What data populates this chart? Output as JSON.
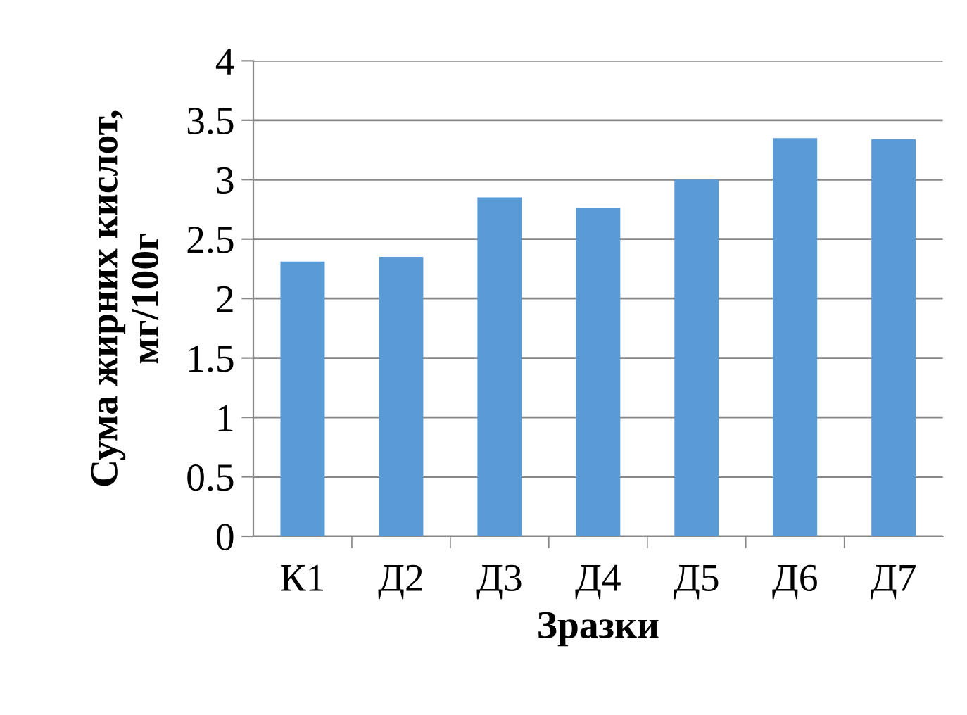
{
  "chart_data": {
    "type": "bar",
    "xlabel": "Зразки",
    "ylabel": "Сума жирних кислот,\nмг/100г",
    "categories": [
      "К1",
      "Д2",
      "Д3",
      "Д4",
      "Д5",
      "Д6",
      "Д7"
    ],
    "values": [
      2.31,
      2.35,
      2.85,
      2.76,
      3.0,
      3.35,
      3.34
    ],
    "color": "#5b9bd5",
    "ylim": [
      0,
      4
    ],
    "yticks": [
      0,
      0.5,
      1,
      1.5,
      2,
      2.5,
      3,
      3.5,
      4
    ],
    "grid": "y",
    "legend": false
  }
}
